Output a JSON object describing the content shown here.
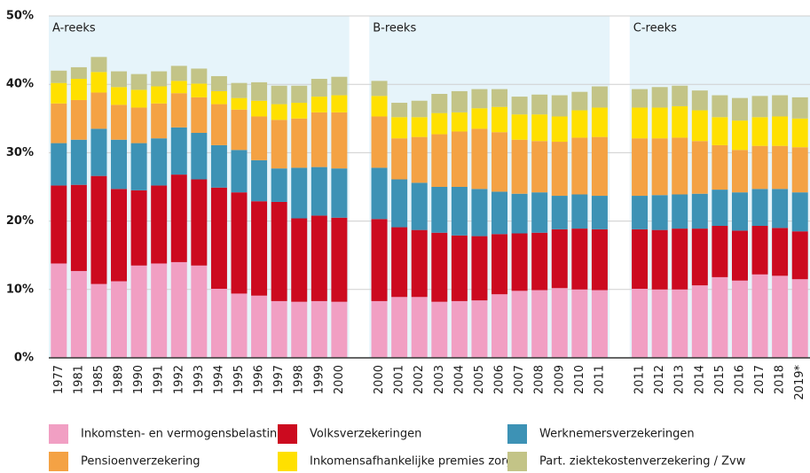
{
  "chart_data": {
    "type": "stacked-bar",
    "categories": [
      "1977",
      "1981",
      "1985",
      "1989",
      "1990",
      "1991",
      "1992",
      "1993",
      "1994",
      "1995",
      "1996",
      "1997",
      "1998",
      "1999",
      "2000",
      null,
      "2000",
      "2001",
      "2002",
      "2003",
      "2004",
      "2005",
      "2006",
      "2007",
      "2008",
      "2009",
      "2010",
      "2011",
      null,
      "2011",
      "2012",
      "2013",
      "2014",
      "2015",
      "2016",
      "2017",
      "2018",
      "2019*"
    ],
    "annotations": [
      "A-reeks",
      "B-reeks",
      "C-reeks"
    ],
    "series": [
      {
        "name": "Inkomsten- en vermogensbelasting",
        "color": "#f19fc3",
        "values": [
          13.8,
          12.7,
          10.8,
          11.2,
          13.5,
          13.8,
          14.0,
          13.5,
          10.1,
          9.4,
          9.1,
          8.3,
          8.2,
          8.3,
          8.2,
          null,
          8.3,
          8.9,
          8.9,
          8.2,
          8.3,
          8.4,
          9.3,
          9.8,
          9.9,
          10.2,
          10.0,
          9.9,
          null,
          10.1,
          10.0,
          10.0,
          10.6,
          11.8,
          11.3,
          12.2,
          12.0,
          11.5
        ]
      },
      {
        "name": "Volksverzekeringen",
        "color": "#cc0a1f",
        "values": [
          11.4,
          12.6,
          15.8,
          13.5,
          11.0,
          11.4,
          12.8,
          12.6,
          14.8,
          14.8,
          13.8,
          14.5,
          12.2,
          12.5,
          12.3,
          null,
          12.0,
          10.2,
          9.8,
          10.1,
          9.6,
          9.4,
          8.8,
          8.4,
          8.4,
          8.6,
          8.9,
          8.9,
          null,
          8.7,
          8.7,
          8.9,
          8.3,
          7.5,
          7.3,
          7.1,
          7.0,
          7.0
        ]
      },
      {
        "name": "Werknemersverzekeringen",
        "color": "#3d92b5",
        "values": [
          6.2,
          6.6,
          6.9,
          7.2,
          6.9,
          6.9,
          6.9,
          6.8,
          6.2,
          6.2,
          6.0,
          4.9,
          7.4,
          7.1,
          7.2,
          null,
          7.5,
          7.0,
          6.9,
          6.7,
          7.1,
          6.9,
          6.2,
          5.8,
          5.9,
          4.9,
          5.0,
          4.9,
          null,
          4.9,
          5.1,
          5.0,
          5.1,
          5.3,
          5.6,
          5.4,
          5.7,
          5.7
        ]
      },
      {
        "name": "Pensioenverzekering",
        "color": "#f4a244",
        "values": [
          5.8,
          5.8,
          5.3,
          5.1,
          5.2,
          5.1,
          5.0,
          5.2,
          6.0,
          5.9,
          6.4,
          7.1,
          7.2,
          8.0,
          8.2,
          null,
          7.5,
          6.0,
          6.7,
          7.7,
          8.1,
          8.8,
          8.7,
          7.9,
          7.5,
          7.9,
          8.3,
          8.6,
          null,
          8.4,
          8.3,
          8.3,
          7.7,
          6.5,
          6.2,
          6.3,
          6.3,
          6.6
        ]
      },
      {
        "name": "Inkomensafhankelijke premies zorg",
        "color": "#ffe000",
        "values": [
          3.0,
          3.1,
          3.0,
          2.6,
          2.6,
          2.5,
          1.8,
          2.0,
          1.9,
          1.7,
          2.3,
          2.3,
          2.3,
          2.3,
          2.5,
          null,
          3.0,
          3.1,
          2.9,
          3.1,
          2.8,
          3.0,
          3.7,
          3.7,
          3.9,
          3.7,
          4.0,
          4.3,
          null,
          4.5,
          4.5,
          4.6,
          4.5,
          4.1,
          4.3,
          4.2,
          4.3,
          4.2
        ]
      },
      {
        "name": "Part. ziektekostenverzekering / Zvw",
        "color": "#c3c487",
        "values": [
          1.8,
          1.7,
          2.2,
          2.3,
          2.3,
          2.2,
          2.2,
          2.2,
          2.2,
          2.2,
          2.7,
          2.7,
          2.5,
          2.6,
          2.7,
          null,
          2.2,
          2.1,
          2.4,
          2.8,
          3.1,
          2.8,
          2.6,
          2.6,
          2.9,
          3.1,
          2.7,
          3.1,
          null,
          2.7,
          3.0,
          3.0,
          2.9,
          3.2,
          3.3,
          3.1,
          3.1,
          3.1
        ]
      }
    ],
    "ylim": [
      0,
      50
    ],
    "yticks": [
      {
        "value": 0,
        "label": "0%"
      },
      {
        "value": 10,
        "label": "10%"
      },
      {
        "value": 20,
        "label": "20%"
      },
      {
        "value": 30,
        "label": "30%"
      },
      {
        "value": 40,
        "label": "40%"
      },
      {
        "value": 50,
        "label": "50%"
      }
    ],
    "grid": true
  }
}
